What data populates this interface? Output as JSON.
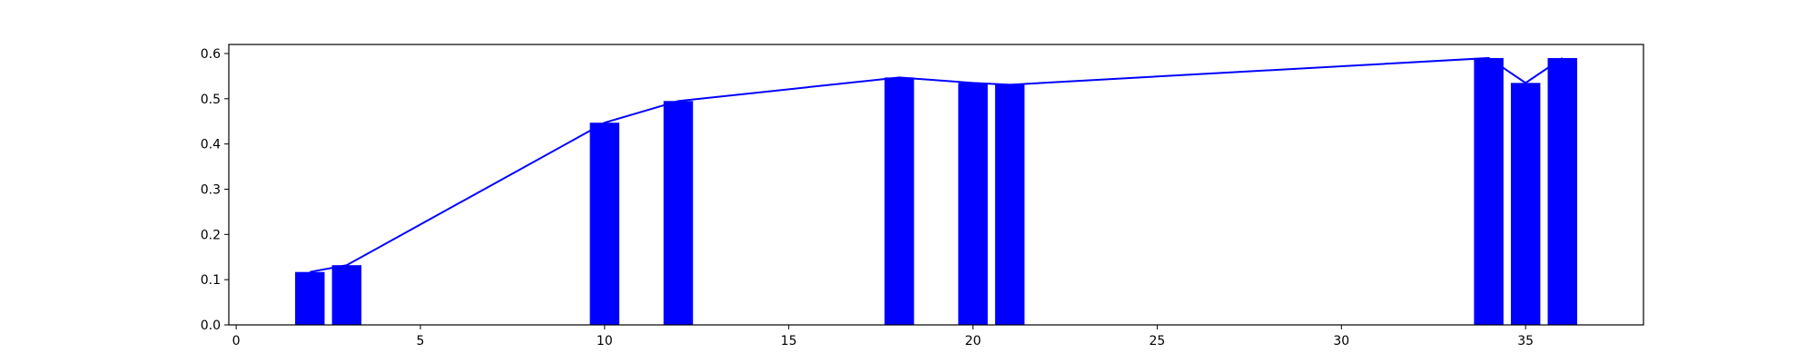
{
  "chart_data": {
    "type": "bar",
    "x": [
      2,
      3,
      10,
      12,
      18,
      20,
      21,
      34,
      35,
      36
    ],
    "values": [
      0.117,
      0.132,
      0.447,
      0.495,
      0.547,
      0.535,
      0.531,
      0.59,
      0.535,
      0.59
    ],
    "overlay_line": true,
    "bar_width": 0.8,
    "color": "#0000ff",
    "title": "",
    "xlabel": "",
    "ylabel": "",
    "xlim": [
      -0.2,
      38.2
    ],
    "ylim": [
      0,
      0.62
    ],
    "xticks": [
      0,
      5,
      10,
      15,
      20,
      25,
      30,
      35
    ],
    "yticks": [
      0.0,
      0.1,
      0.2,
      0.3,
      0.4,
      0.5,
      0.6
    ],
    "xtick_labels": [
      "0",
      "5",
      "10",
      "15",
      "20",
      "25",
      "30",
      "35"
    ],
    "ytick_labels": [
      "0.0",
      "0.1",
      "0.2",
      "0.3",
      "0.4",
      "0.5",
      "0.6"
    ],
    "grid": false,
    "legend": "none"
  }
}
